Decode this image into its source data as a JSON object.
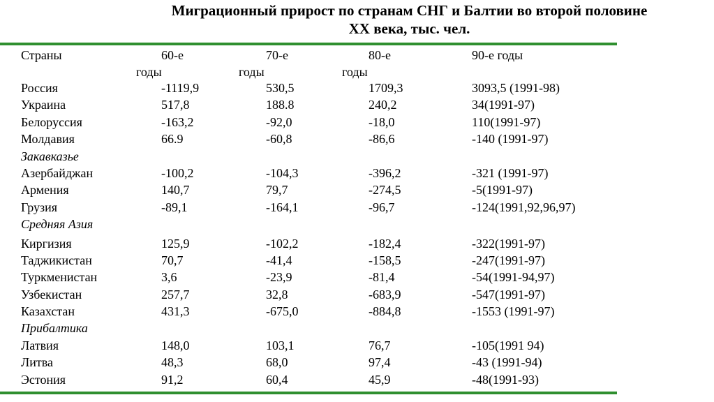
{
  "title": {
    "line1": "Миграционный прирост по странам СНГ и Балтии во второй половине",
    "line2": "XX века, тыс. чел."
  },
  "header": {
    "country": "Страны",
    "c60_a": "60-е",
    "c60_b": "годы",
    "c70_a": "70-е",
    "c70_b": "годы",
    "c80_a": "80-е",
    "c80_b": "годы",
    "c90": "90-е годы"
  },
  "rows": [
    {
      "type": "data",
      "name": "Россия",
      "v60": "-1119,9",
      "v70": "530,5",
      "v80": "1709,3",
      "v90": "3093,5 (1991-98)"
    },
    {
      "type": "data",
      "name": "Украина",
      "v60": "517,8",
      "v70": "188.8",
      "v80": "240,2",
      "v90": "34(1991-97)"
    },
    {
      "type": "data",
      "name": "Белоруссия",
      "v60": "-163,2",
      "v70": "-92,0",
      "v80": "-18,0",
      "v90": "110(1991-97)"
    },
    {
      "type": "data",
      "name": "Молдавия",
      "v60": "66.9",
      "v70": "-60,8",
      "v80": "-86,6",
      "v90": "-140 (1991-97)"
    },
    {
      "type": "group",
      "name": "Закавказье"
    },
    {
      "type": "data",
      "name": "Азербайджан",
      "v60": "-100,2",
      "v70": "-104,3",
      "v80": "-396,2",
      "v90": "-321 (1991-97)"
    },
    {
      "type": "data",
      "name": "Армения",
      "v60": "140,7",
      "v70": "79,7",
      "v80": "-274,5",
      "v90": "-5(1991-97)"
    },
    {
      "type": "data",
      "name": "Грузия",
      "v60": "-89,1",
      "v70": "-164,1",
      "v80": "-96,7",
      "v90": "-124(1991,92,96,97)"
    },
    {
      "type": "group",
      "name": "Средняя Азия"
    },
    {
      "type": "data",
      "name": "Киргизия",
      "v60": "125,9",
      "v70": "-102,2",
      "v80": "-182,4",
      "v90": "-322(1991-97)",
      "gap": true
    },
    {
      "type": "data",
      "name": "Таджикистан",
      "v60": "70,7",
      "v70": "-41,4",
      "v80": "-158,5",
      "v90": "-247(1991-97)"
    },
    {
      "type": "data",
      "name": "Туркменистан",
      "v60": "3,6",
      "v70": "-23,9",
      "v80": "-81,4",
      "v90": "-54(1991-94,97)"
    },
    {
      "type": "data",
      "name": "Узбекистан",
      "v60": "257,7",
      "v70": "32,8",
      "v80": "-683,9",
      "v90": "-547(1991-97)"
    },
    {
      "type": "data",
      "name": "Казахстан",
      "v60": "431,3",
      "v70": "-675,0",
      "v80": "-884,8",
      "v90": "-1553 (1991-97)"
    },
    {
      "type": "group",
      "name": "Прибалтика"
    },
    {
      "type": "data",
      "name": "Латвия",
      "v60": "148,0",
      "v70": "103,1",
      "v80": "76,7",
      "v90": "-105(1991 94)"
    },
    {
      "type": "data",
      "name": "Литва",
      "v60": "48,3",
      "v70": "68,0",
      "v80": "97,4",
      "v90": "-43 (1991-94)"
    },
    {
      "type": "data",
      "name": "Эстония",
      "v60": "91,2",
      "v70": "60,4",
      "v80": "45,9",
      "v90": "-48(1991-93)"
    }
  ]
}
